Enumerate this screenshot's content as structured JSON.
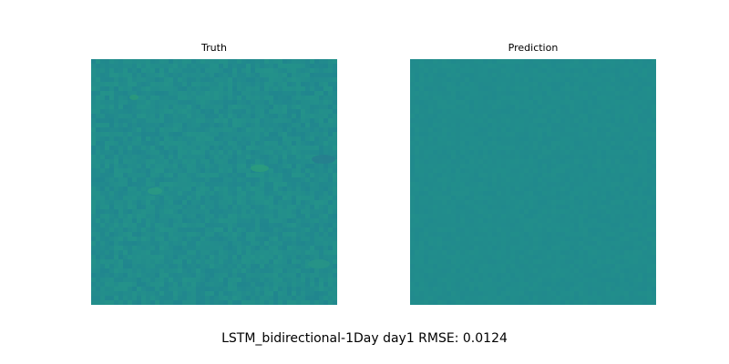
{
  "chart_data": [
    {
      "type": "heatmap",
      "title": "Truth",
      "axes_visible": false,
      "colormap": "viridis",
      "base_color": "#228c8c",
      "features": [
        {
          "kind": "spot",
          "color": "#2a9a7a"
        },
        {
          "kind": "spot",
          "color": "#2c9c7c"
        },
        {
          "kind": "spot",
          "color": "#267e8e"
        },
        {
          "kind": "spot",
          "color": "#2a9a82"
        },
        {
          "kind": "spot",
          "color": "#279486"
        }
      ]
    },
    {
      "type": "heatmap",
      "title": "Prediction",
      "axes_visible": false,
      "colormap": "viridis",
      "base_color": "#218c8c",
      "features": []
    }
  ],
  "figure": {
    "suptitle": "LSTM_bidirectional-1Day day1 RMSE: 0.0124"
  }
}
